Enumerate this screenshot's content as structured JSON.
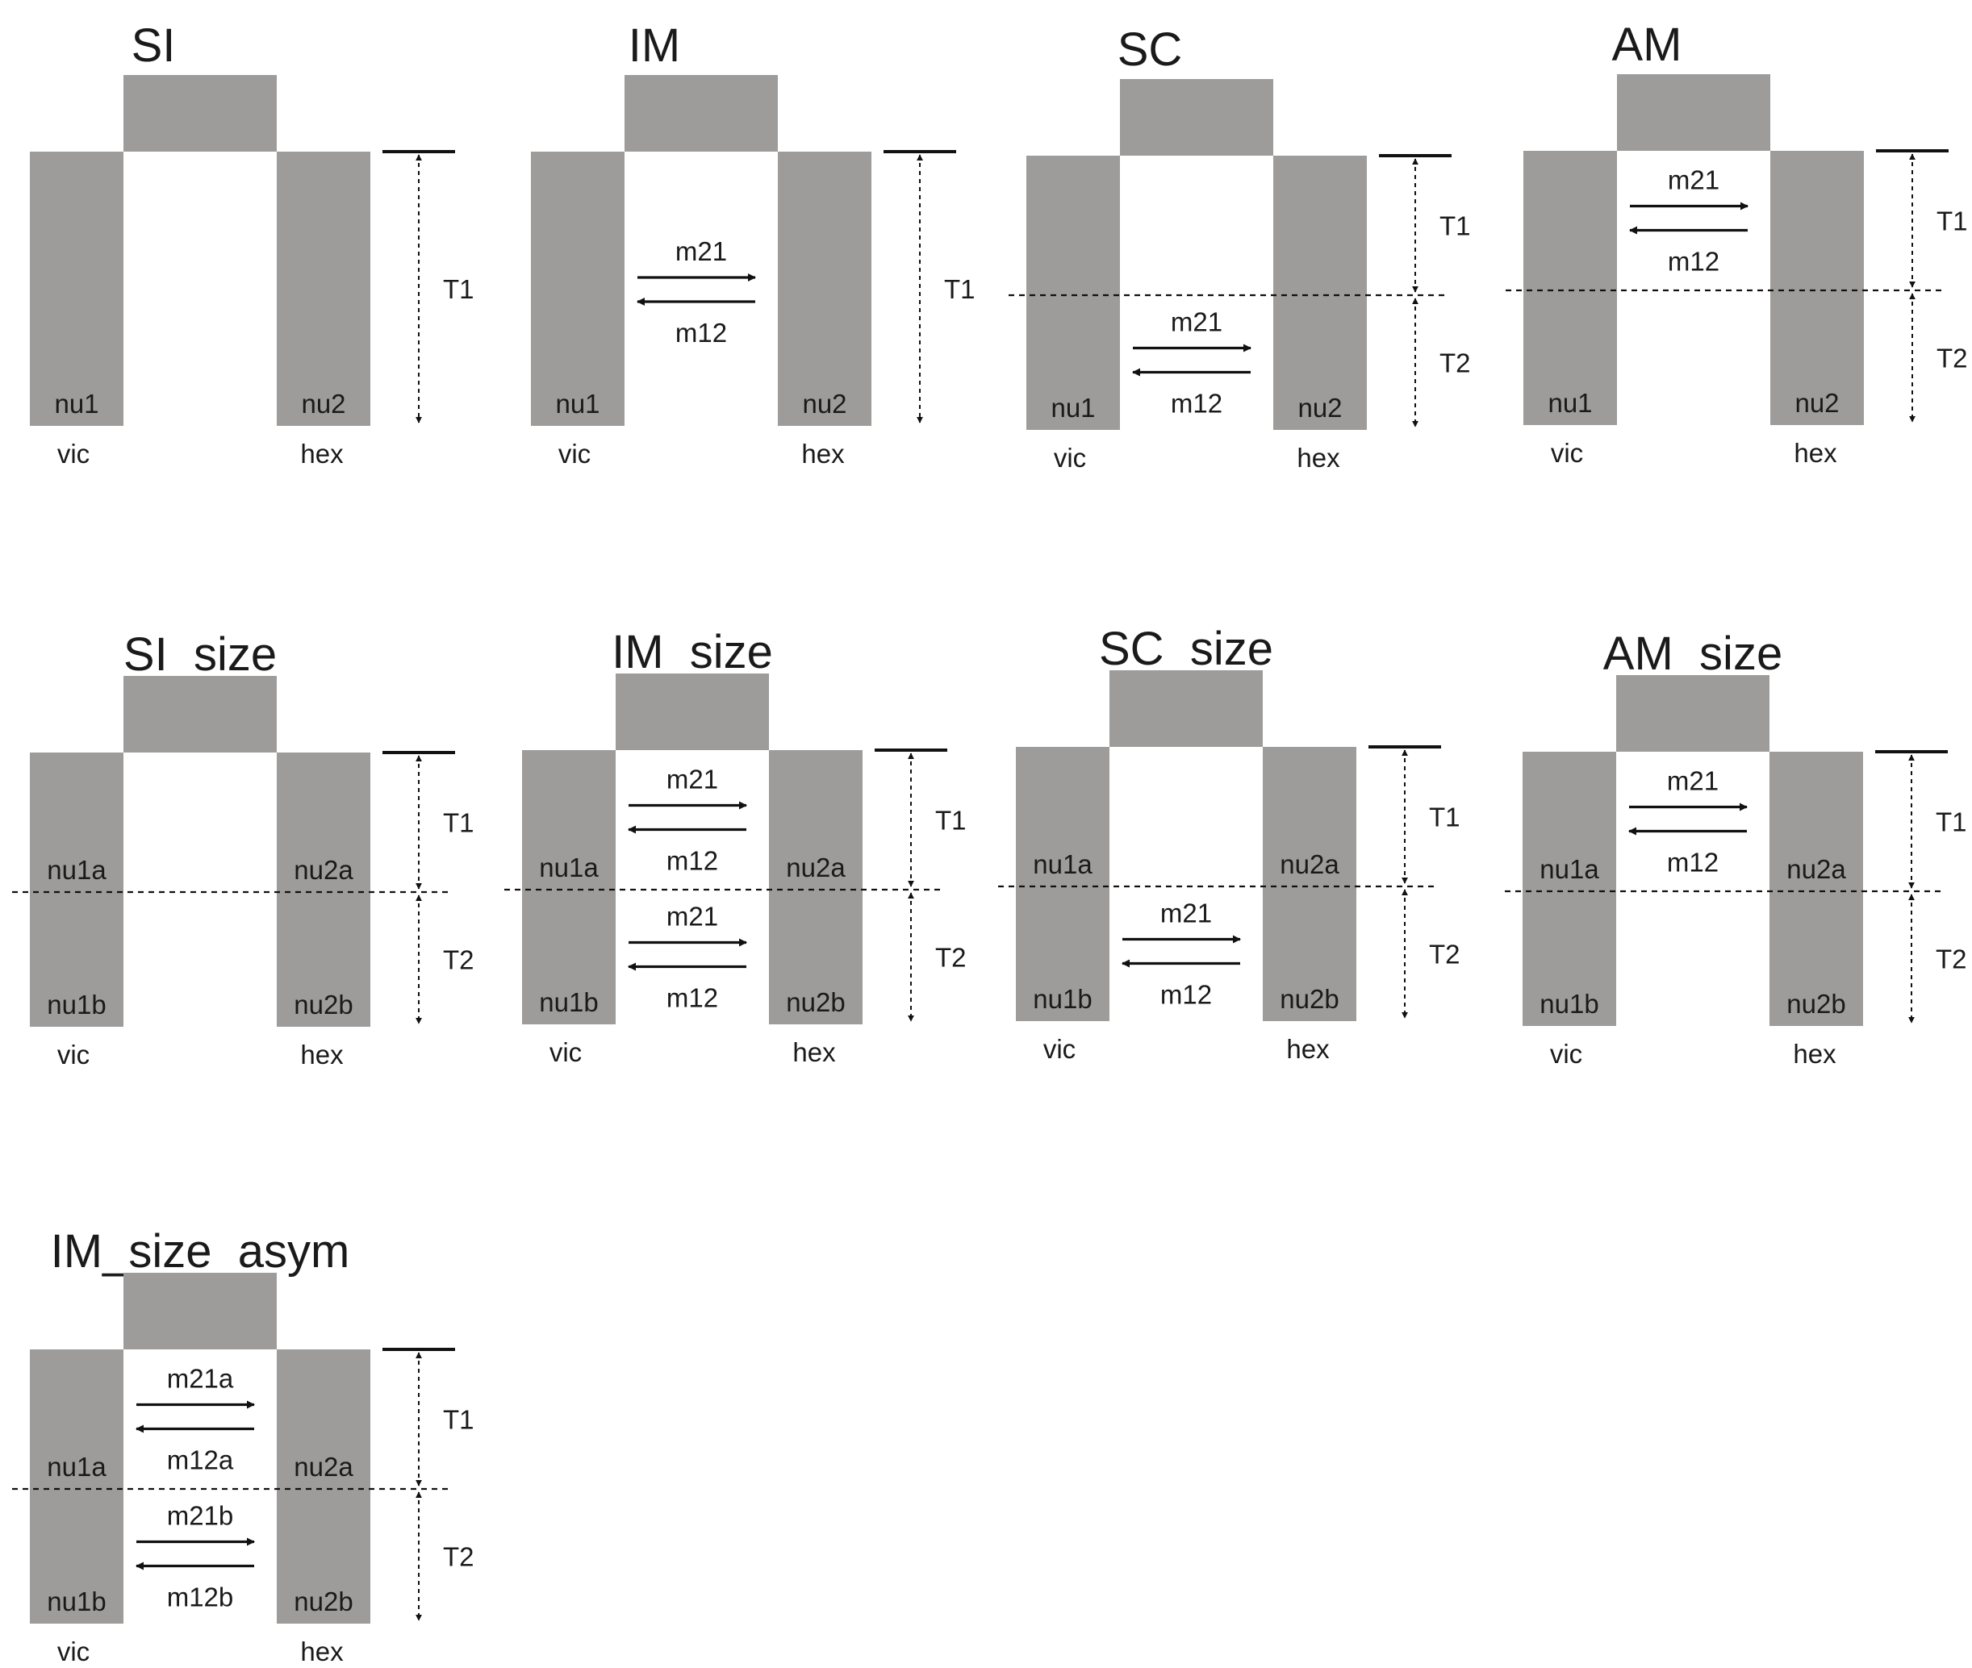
{
  "colors": {
    "block": "#9d9c9b",
    "line": "#111111"
  },
  "panels": [
    {
      "title": "SI",
      "left_pop": "vic",
      "right_pop": "hex",
      "epochs": [
        {
          "label": "T1",
          "left_size": "nu1",
          "right_size": "nu2",
          "migration": null
        }
      ]
    },
    {
      "title": "IM",
      "left_pop": "vic",
      "right_pop": "hex",
      "epochs": [
        {
          "label": "T1",
          "left_size": "nu1",
          "right_size": "nu2",
          "migration": {
            "forward": "m21",
            "backward": "m12"
          }
        }
      ]
    },
    {
      "title": "SC",
      "left_pop": "vic",
      "right_pop": "hex",
      "epochs": [
        {
          "label": "T1",
          "left_size": "",
          "right_size": "",
          "migration": null
        },
        {
          "label": "T2",
          "left_size": "nu1",
          "right_size": "nu2",
          "migration": {
            "forward": "m21",
            "backward": "m12"
          }
        }
      ]
    },
    {
      "title": "AM",
      "left_pop": "vic",
      "right_pop": "hex",
      "epochs": [
        {
          "label": "T1",
          "left_size": "",
          "right_size": "",
          "migration": {
            "forward": "m21",
            "backward": "m12"
          }
        },
        {
          "label": "T2",
          "left_size": "nu1",
          "right_size": "nu2",
          "migration": null
        }
      ]
    },
    {
      "title": "SI_size",
      "left_pop": "vic",
      "right_pop": "hex",
      "epochs": [
        {
          "label": "T1",
          "left_size": "nu1a",
          "right_size": "nu2a",
          "migration": null
        },
        {
          "label": "T2",
          "left_size": "nu1b",
          "right_size": "nu2b",
          "migration": null
        }
      ]
    },
    {
      "title": "IM_size",
      "left_pop": "vic",
      "right_pop": "hex",
      "epochs": [
        {
          "label": "T1",
          "left_size": "nu1a",
          "right_size": "nu2a",
          "migration": {
            "forward": "m21",
            "backward": "m12"
          }
        },
        {
          "label": "T2",
          "left_size": "nu1b",
          "right_size": "nu2b",
          "migration": {
            "forward": "m21",
            "backward": "m12"
          }
        }
      ]
    },
    {
      "title": "SC_size",
      "left_pop": "vic",
      "right_pop": "hex",
      "epochs": [
        {
          "label": "T1",
          "left_size": "nu1a",
          "right_size": "nu2a",
          "migration": null
        },
        {
          "label": "T2",
          "left_size": "nu1b",
          "right_size": "nu2b",
          "migration": {
            "forward": "m21",
            "backward": "m12"
          }
        }
      ]
    },
    {
      "title": "AM_size",
      "left_pop": "vic",
      "right_pop": "hex",
      "epochs": [
        {
          "label": "T1",
          "left_size": "nu1a",
          "right_size": "nu2a",
          "migration": {
            "forward": "m21",
            "backward": "m12"
          }
        },
        {
          "label": "T2",
          "left_size": "nu1b",
          "right_size": "nu2b",
          "migration": null
        }
      ]
    },
    {
      "title": "IM_size_asym",
      "left_pop": "vic",
      "right_pop": "hex",
      "epochs": [
        {
          "label": "T1",
          "left_size": "nu1a",
          "right_size": "nu2a",
          "migration": {
            "forward": "m21a",
            "backward": "m12a"
          }
        },
        {
          "label": "T2",
          "left_size": "nu1b",
          "right_size": "nu2b",
          "migration": {
            "forward": "m21b",
            "backward": "m12b"
          }
        }
      ]
    }
  ]
}
